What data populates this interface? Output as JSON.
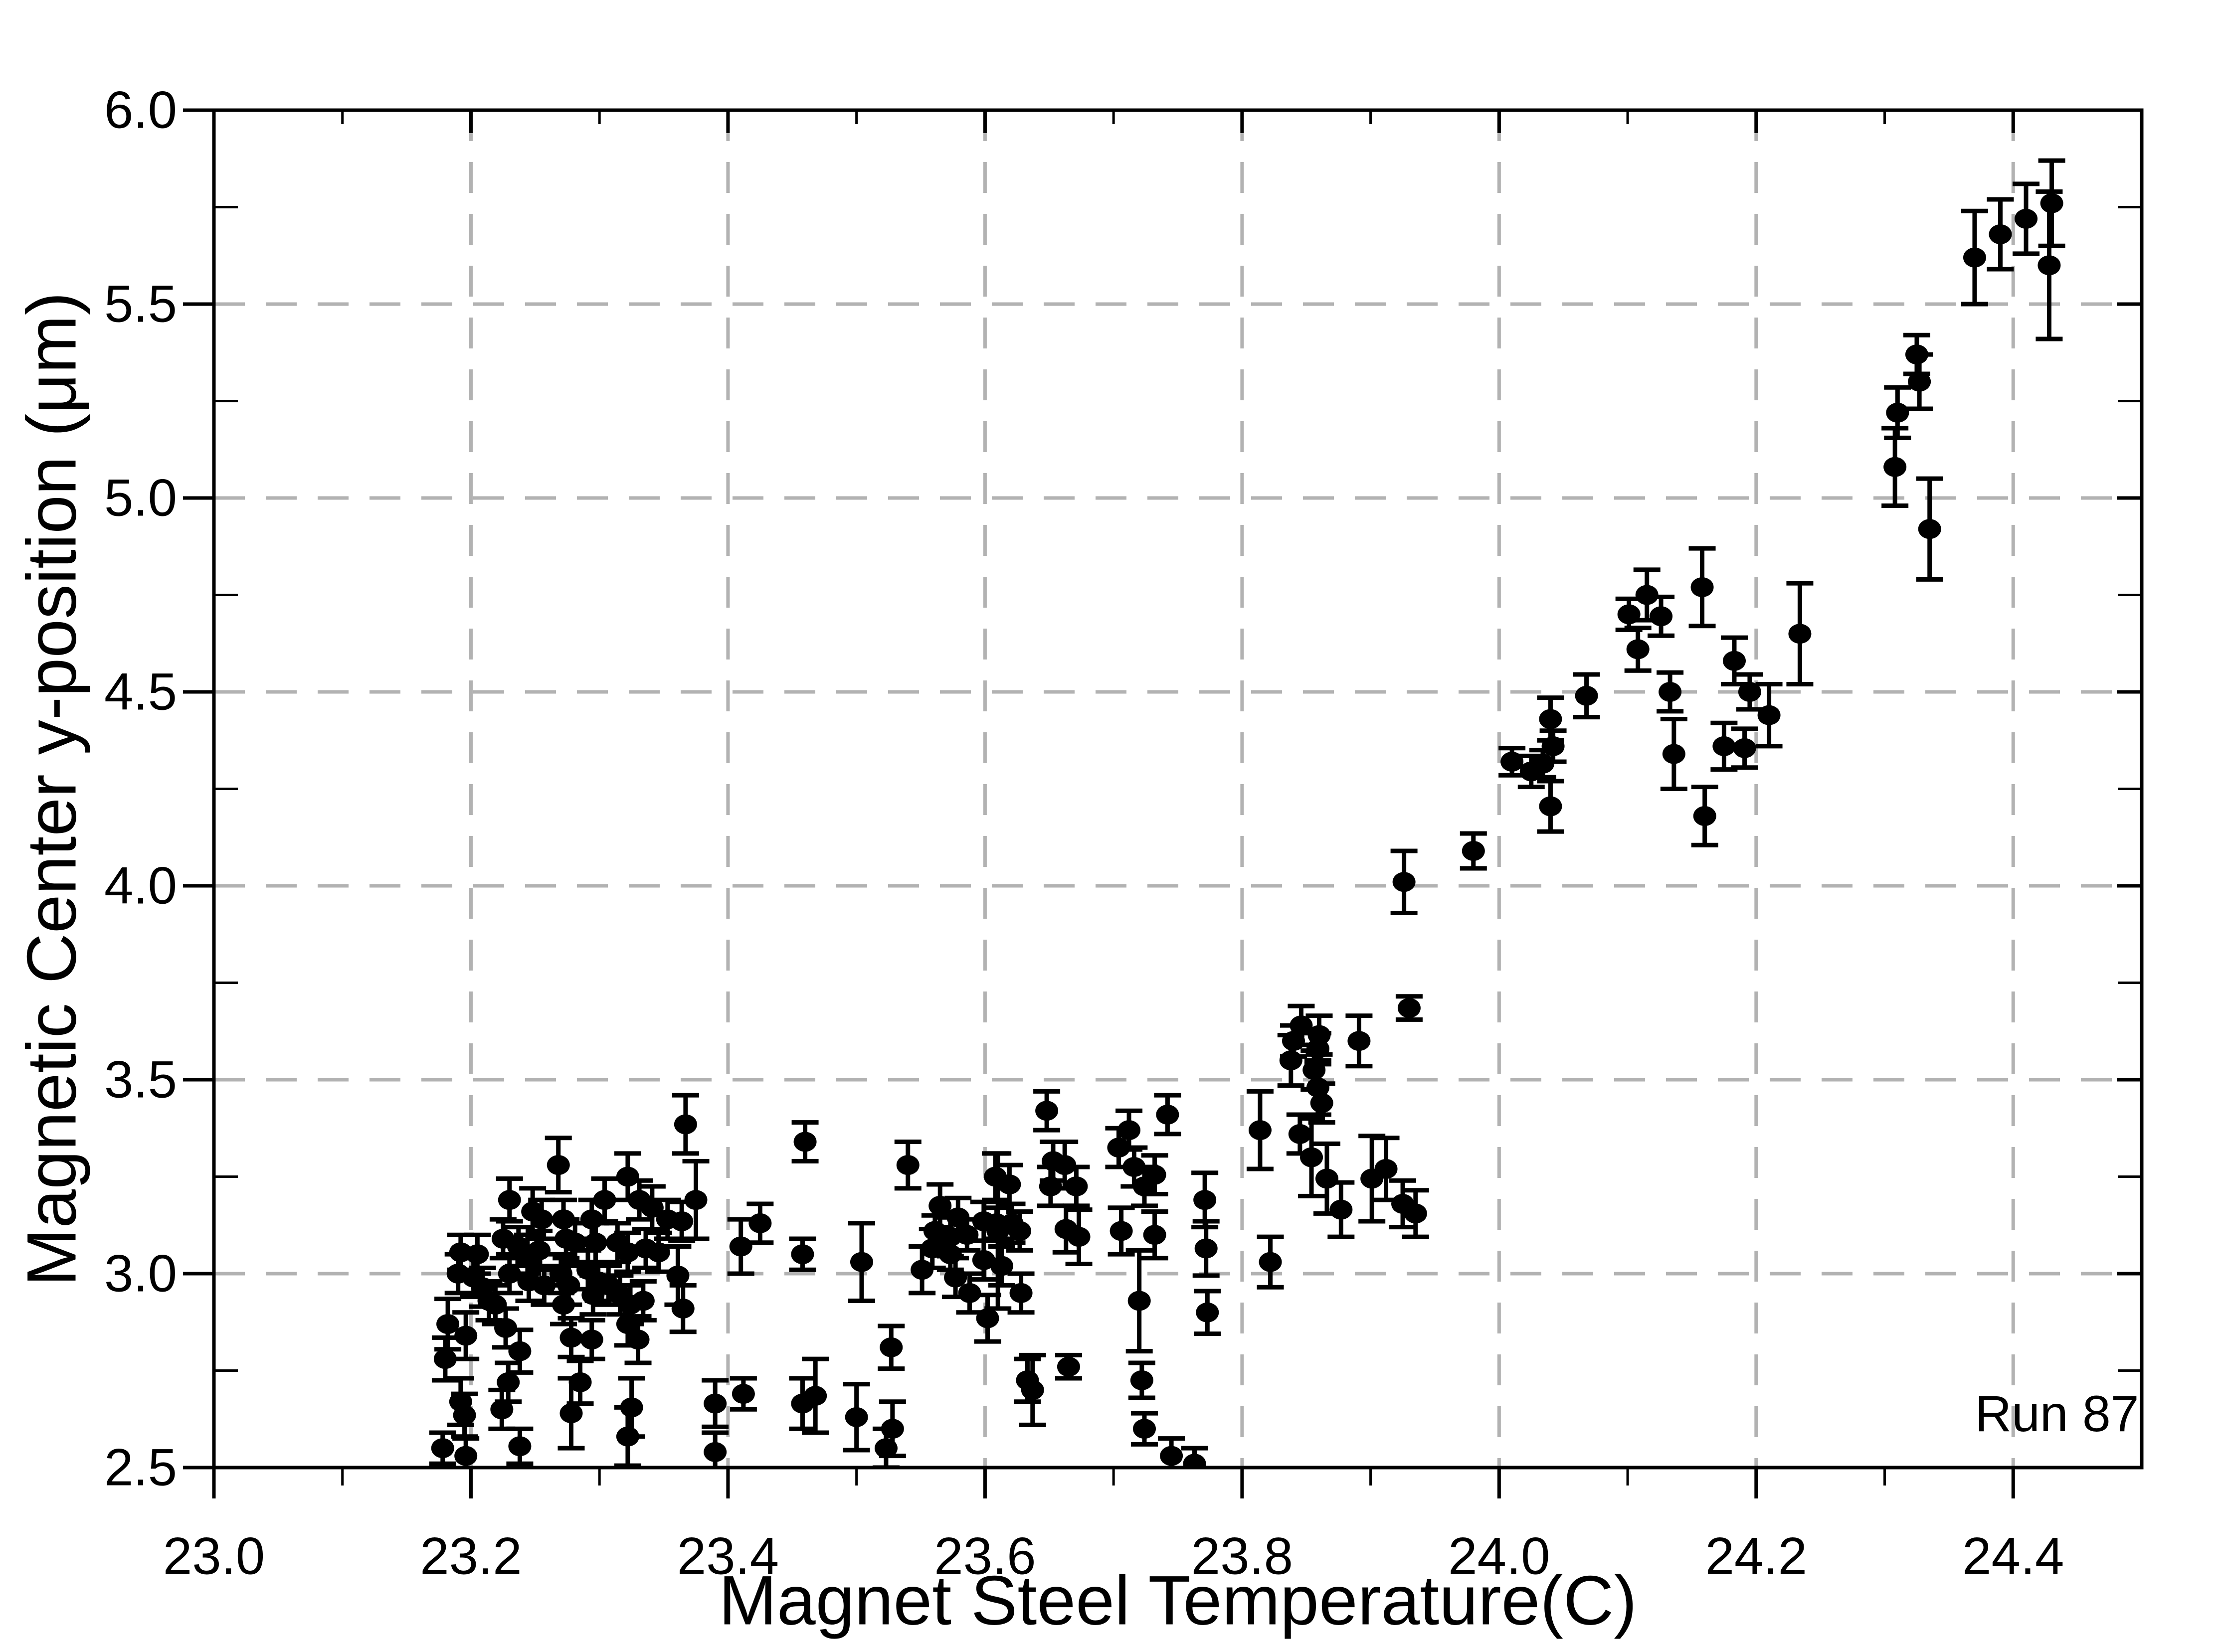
{
  "figure": {
    "background": "#ffffff"
  },
  "chart_data": {
    "type": "scatter",
    "title": "",
    "xlabel": "Magnet Steel Temperature(C)",
    "ylabel": "Magnetic Center y-position (μm)",
    "annotation": "Run 87",
    "xlim": [
      23.0,
      24.5
    ],
    "ylim": [
      2.5,
      6.0
    ],
    "x_major_ticks": [
      23.0,
      23.2,
      23.4,
      23.6,
      23.8,
      24.0,
      24.2,
      24.4
    ],
    "x_tick_labels": [
      "23.0",
      "23.2",
      "23.4",
      "23.6",
      "23.8",
      "24.0",
      "24.2",
      "24.4"
    ],
    "x_minor_ticks": [
      23.1,
      23.3,
      23.5,
      23.7,
      23.9,
      24.1,
      24.3
    ],
    "y_major_ticks": [
      2.5,
      3.0,
      3.5,
      4.0,
      4.5,
      5.0,
      5.5,
      6.0
    ],
    "y_tick_labels": [
      "2.5",
      "3.0",
      "3.5",
      "4.0",
      "4.5",
      "5.0",
      "5.5",
      "6.0"
    ],
    "y_minor_ticks": [
      2.75,
      3.25,
      3.75,
      4.25,
      4.75,
      5.25,
      5.75
    ],
    "x_gridlines": [
      23.2,
      23.4,
      23.6,
      23.8,
      24.0,
      24.2,
      24.4
    ],
    "y_gridlines": [
      3.0,
      3.5,
      4.0,
      4.5,
      5.0,
      5.5
    ],
    "grid_on": true,
    "grid_color": "#b2b2b2",
    "axis_color": "#000000",
    "marker_color": "#000000",
    "legend": "none",
    "series": [
      {
        "name": "Run 87",
        "point_format": [
          "temperature_C",
          "y_position_um",
          "y_error_um"
        ],
        "points": [
          [
            23.178,
            2.55,
            0.04
          ],
          [
            23.196,
            2.53,
            0.045
          ],
          [
            23.192,
            2.67,
            0.06
          ],
          [
            23.195,
            2.635,
            0.055
          ],
          [
            23.18,
            2.78,
            0.055
          ],
          [
            23.182,
            2.87,
            0.065
          ],
          [
            23.196,
            2.84,
            0.06
          ],
          [
            23.19,
            3.0,
            0.05
          ],
          [
            23.192,
            3.055,
            0.045
          ],
          [
            23.205,
            3.05,
            0.05
          ],
          [
            23.202,
            2.99,
            0.05
          ],
          [
            23.209,
            2.965,
            0.05
          ],
          [
            23.214,
            2.93,
            0.05
          ],
          [
            23.219,
            2.92,
            0.05
          ],
          [
            23.227,
            2.86,
            0.05
          ],
          [
            23.238,
            2.8,
            0.055
          ],
          [
            23.229,
            2.72,
            0.05
          ],
          [
            23.224,
            2.65,
            0.05
          ],
          [
            23.238,
            2.555,
            0.045
          ],
          [
            23.23,
            3.19,
            0.055
          ],
          [
            23.248,
            3.16,
            0.06
          ],
          [
            23.255,
            3.14,
            0.05
          ],
          [
            23.225,
            3.09,
            0.05
          ],
          [
            23.237,
            3.07,
            0.05
          ],
          [
            23.244,
            3.05,
            0.05
          ],
          [
            23.253,
            3.06,
            0.05
          ],
          [
            23.23,
            3.0,
            0.05
          ],
          [
            23.245,
            2.98,
            0.05
          ],
          [
            23.257,
            2.97,
            0.05
          ],
          [
            23.268,
            3.28,
            0.07
          ],
          [
            23.367,
            3.385,
            0.075
          ],
          [
            23.322,
            3.25,
            0.06
          ],
          [
            23.304,
            3.19,
            0.055
          ],
          [
            23.331,
            3.19,
            0.05
          ],
          [
            23.341,
            3.17,
            0.055
          ],
          [
            23.353,
            3.14,
            0.05
          ],
          [
            23.364,
            3.135,
            0.05
          ],
          [
            23.294,
            3.14,
            0.05
          ],
          [
            23.272,
            3.14,
            0.05
          ],
          [
            23.274,
            3.09,
            0.05
          ],
          [
            23.281,
            3.08,
            0.05
          ],
          [
            23.297,
            3.08,
            0.05
          ],
          [
            23.314,
            3.08,
            0.05
          ],
          [
            23.322,
            3.055,
            0.05
          ],
          [
            23.336,
            3.065,
            0.05
          ],
          [
            23.346,
            3.055,
            0.05
          ],
          [
            23.27,
            3.0,
            0.05
          ],
          [
            23.276,
            2.97,
            0.05
          ],
          [
            23.272,
            2.92,
            0.05
          ],
          [
            23.291,
            3.01,
            0.05
          ],
          [
            23.299,
            2.98,
            0.05
          ],
          [
            23.295,
            2.945,
            0.05
          ],
          [
            23.307,
            2.97,
            0.05
          ],
          [
            23.316,
            2.945,
            0.05
          ],
          [
            23.324,
            2.92,
            0.05
          ],
          [
            23.334,
            2.93,
            0.05
          ],
          [
            23.278,
            2.835,
            0.05
          ],
          [
            23.294,
            2.83,
            0.05
          ],
          [
            23.285,
            2.72,
            0.055
          ],
          [
            23.278,
            2.64,
            0.09
          ],
          [
            23.322,
            2.87,
            0.055
          ],
          [
            23.33,
            2.83,
            0.06
          ],
          [
            23.361,
            2.995,
            0.075
          ],
          [
            23.365,
            2.91,
            0.06
          ],
          [
            23.325,
            2.655,
            0.075
          ],
          [
            23.322,
            2.58,
            0.075
          ],
          [
            23.375,
            3.19,
            0.1
          ],
          [
            23.41,
            3.07,
            0.07
          ],
          [
            23.425,
            3.13,
            0.05
          ],
          [
            23.458,
            3.05,
            0.04
          ],
          [
            23.504,
            3.03,
            0.1
          ],
          [
            23.46,
            3.34,
            0.05
          ],
          [
            23.39,
            2.665,
            0.06
          ],
          [
            23.39,
            2.54,
            0.05
          ],
          [
            23.412,
            2.69,
            0.04
          ],
          [
            23.458,
            2.665,
            0.065
          ],
          [
            23.468,
            2.685,
            0.095
          ],
          [
            23.5,
            2.63,
            0.085
          ],
          [
            23.527,
            2.81,
            0.055
          ],
          [
            23.528,
            2.6,
            0.07
          ],
          [
            23.523,
            2.55,
            0.05
          ],
          [
            23.54,
            3.28,
            0.06
          ],
          [
            23.565,
            3.175,
            0.055
          ],
          [
            23.579,
            3.145,
            0.05
          ],
          [
            23.561,
            3.11,
            0.04
          ],
          [
            23.573,
            3.095,
            0.05
          ],
          [
            23.559,
            3.065,
            0.05
          ],
          [
            23.573,
            3.05,
            0.04
          ],
          [
            23.586,
            3.1,
            0.04
          ],
          [
            23.551,
            3.01,
            0.06
          ],
          [
            23.577,
            2.99,
            0.05
          ],
          [
            23.588,
            2.95,
            0.05
          ],
          [
            23.602,
            2.885,
            0.06
          ],
          [
            23.628,
            2.95,
            0.05
          ],
          [
            23.608,
            3.25,
            0.06
          ],
          [
            23.619,
            3.23,
            0.05
          ],
          [
            23.599,
            3.135,
            0.05
          ],
          [
            23.609,
            3.13,
            0.04
          ],
          [
            23.621,
            3.13,
            0.05
          ],
          [
            23.627,
            3.11,
            0.05
          ],
          [
            23.61,
            3.11,
            0.2
          ],
          [
            23.599,
            3.035,
            0.05
          ],
          [
            23.613,
            3.02,
            0.05
          ],
          [
            23.633,
            2.725,
            0.055
          ],
          [
            23.637,
            2.7,
            0.09
          ],
          [
            23.665,
            2.76,
            0.03
          ],
          [
            23.648,
            3.42,
            0.05
          ],
          [
            23.653,
            3.29,
            0.05
          ],
          [
            23.662,
            3.28,
            0.06
          ],
          [
            23.651,
            3.225,
            0.05
          ],
          [
            23.671,
            3.225,
            0.05
          ],
          [
            23.663,
            3.115,
            0.06
          ],
          [
            23.673,
            3.095,
            0.07
          ],
          [
            23.712,
            3.37,
            0.05
          ],
          [
            23.704,
            3.325,
            0.05
          ],
          [
            23.716,
            3.275,
            0.05
          ],
          [
            23.724,
            3.225,
            0.05
          ],
          [
            23.732,
            3.255,
            0.05
          ],
          [
            23.706,
            3.11,
            0.06
          ],
          [
            23.732,
            3.1,
            0.06
          ],
          [
            23.72,
            2.93,
            0.13
          ],
          [
            23.722,
            2.725,
            0.045
          ],
          [
            23.724,
            2.6,
            0.04
          ],
          [
            23.742,
            3.41,
            0.05
          ],
          [
            23.771,
            3.19,
            0.07
          ],
          [
            23.772,
            3.065,
            0.07
          ],
          [
            23.773,
            2.9,
            0.055
          ],
          [
            23.814,
            3.37,
            0.1
          ],
          [
            23.845,
            3.36,
            0.05
          ],
          [
            23.822,
            3.03,
            0.065
          ],
          [
            23.745,
            2.53,
            0.045
          ],
          [
            23.763,
            2.51,
            0.04
          ],
          [
            23.854,
            3.3,
            0.1
          ],
          [
            23.866,
            3.245,
            0.09
          ],
          [
            23.877,
            3.165,
            0.07
          ],
          [
            23.901,
            3.245,
            0.11
          ],
          [
            23.912,
            3.27,
            0.08
          ],
          [
            23.925,
            3.18,
            0.06
          ],
          [
            23.935,
            3.155,
            0.06
          ],
          [
            23.846,
            3.64,
            0.05
          ],
          [
            23.86,
            3.615,
            0.05
          ],
          [
            23.84,
            3.6,
            0.04
          ],
          [
            23.859,
            3.58,
            0.04
          ],
          [
            23.838,
            3.55,
            0.065
          ],
          [
            23.856,
            3.525,
            0.05
          ],
          [
            23.859,
            3.48,
            0.07
          ],
          [
            23.862,
            3.44,
            0.05
          ],
          [
            23.891,
            3.6,
            0.065
          ],
          [
            23.926,
            4.01,
            0.08
          ],
          [
            23.98,
            4.09,
            0.045
          ],
          [
            23.93,
            3.685,
            0.03
          ],
          [
            24.01,
            4.32,
            0.035
          ],
          [
            24.025,
            4.295,
            0.04
          ],
          [
            24.04,
            4.43,
            0.055
          ],
          [
            24.042,
            4.36,
            0.04
          ],
          [
            24.034,
            4.315,
            0.035
          ],
          [
            24.04,
            4.205,
            0.065
          ],
          [
            24.068,
            4.49,
            0.055
          ],
          [
            24.115,
            4.75,
            0.065
          ],
          [
            24.101,
            4.7,
            0.04
          ],
          [
            24.126,
            4.695,
            0.05
          ],
          [
            24.108,
            4.61,
            0.055
          ],
          [
            24.133,
            4.5,
            0.05
          ],
          [
            24.136,
            4.34,
            0.09
          ],
          [
            24.158,
            4.77,
            0.1
          ],
          [
            24.175,
            4.36,
            0.06
          ],
          [
            24.191,
            4.355,
            0.05
          ],
          [
            24.183,
            4.58,
            0.06
          ],
          [
            24.195,
            4.5,
            0.045
          ],
          [
            24.21,
            4.44,
            0.08
          ],
          [
            24.16,
            4.18,
            0.075
          ],
          [
            24.234,
            4.65,
            0.13
          ],
          [
            24.31,
            5.22,
            0.065
          ],
          [
            24.308,
            5.08,
            0.1
          ],
          [
            24.325,
            5.37,
            0.05
          ],
          [
            24.327,
            5.3,
            0.07
          ],
          [
            24.335,
            4.92,
            0.13
          ],
          [
            24.37,
            5.62,
            0.12
          ],
          [
            24.39,
            5.68,
            0.09
          ],
          [
            24.41,
            5.72,
            0.09
          ],
          [
            24.43,
            5.76,
            0.11
          ],
          [
            24.428,
            5.6,
            0.19
          ]
        ]
      }
    ]
  }
}
